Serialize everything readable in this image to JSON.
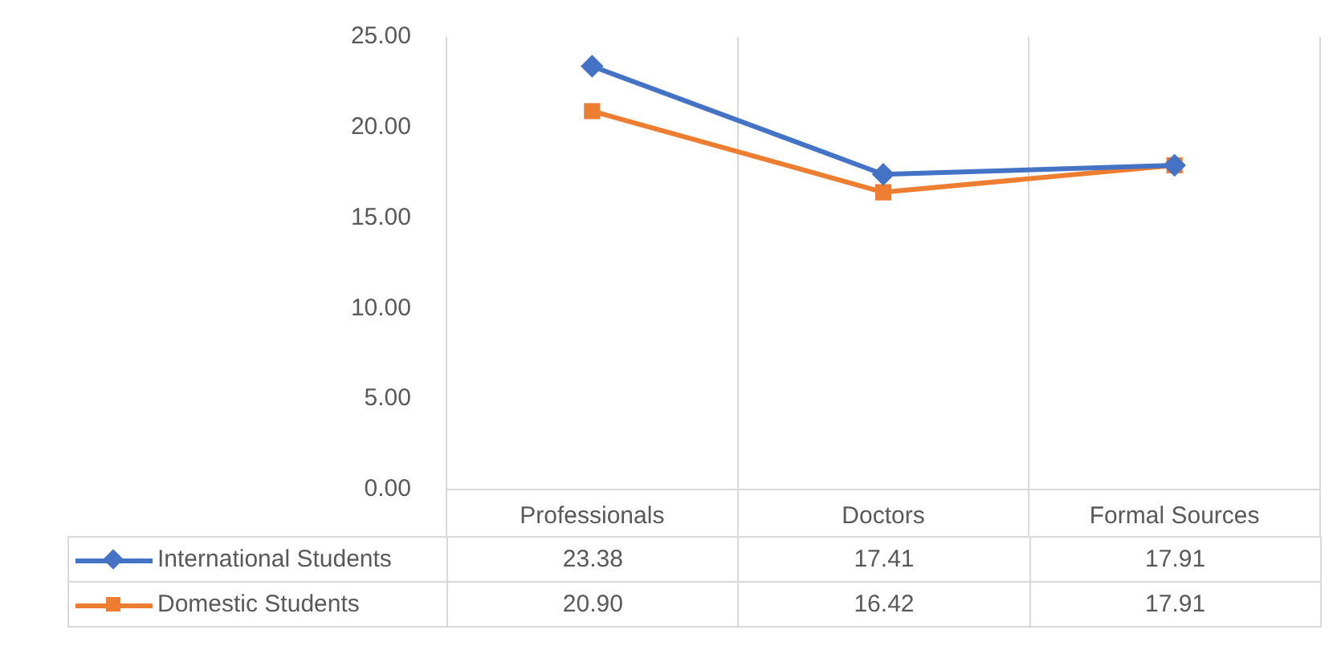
{
  "chart_data": {
    "type": "line",
    "categories": [
      "Professionals",
      "Doctors",
      "Formal Sources"
    ],
    "series": [
      {
        "name": "International Students",
        "color": "#4472c4",
        "marker": "diamond",
        "values": [
          23.38,
          17.41,
          17.91
        ],
        "value_labels": [
          "23.38",
          "17.41",
          "17.91"
        ]
      },
      {
        "name": "Domestic Students",
        "color": "#ed7d31",
        "marker": "square",
        "values": [
          20.9,
          16.42,
          17.91
        ],
        "value_labels": [
          "20.90",
          "16.42",
          "17.91"
        ]
      }
    ],
    "ylim": [
      0,
      25
    ],
    "yticks": [
      {
        "value": 0,
        "label": "0.00"
      },
      {
        "value": 5,
        "label": "5.00"
      },
      {
        "value": 10,
        "label": "10.00"
      },
      {
        "value": 15,
        "label": "15.00"
      },
      {
        "value": 20,
        "label": "20.00"
      },
      {
        "value": 25,
        "label": "25.00"
      }
    ],
    "grid": "x",
    "legend": "bottom",
    "line_style": "solid"
  }
}
